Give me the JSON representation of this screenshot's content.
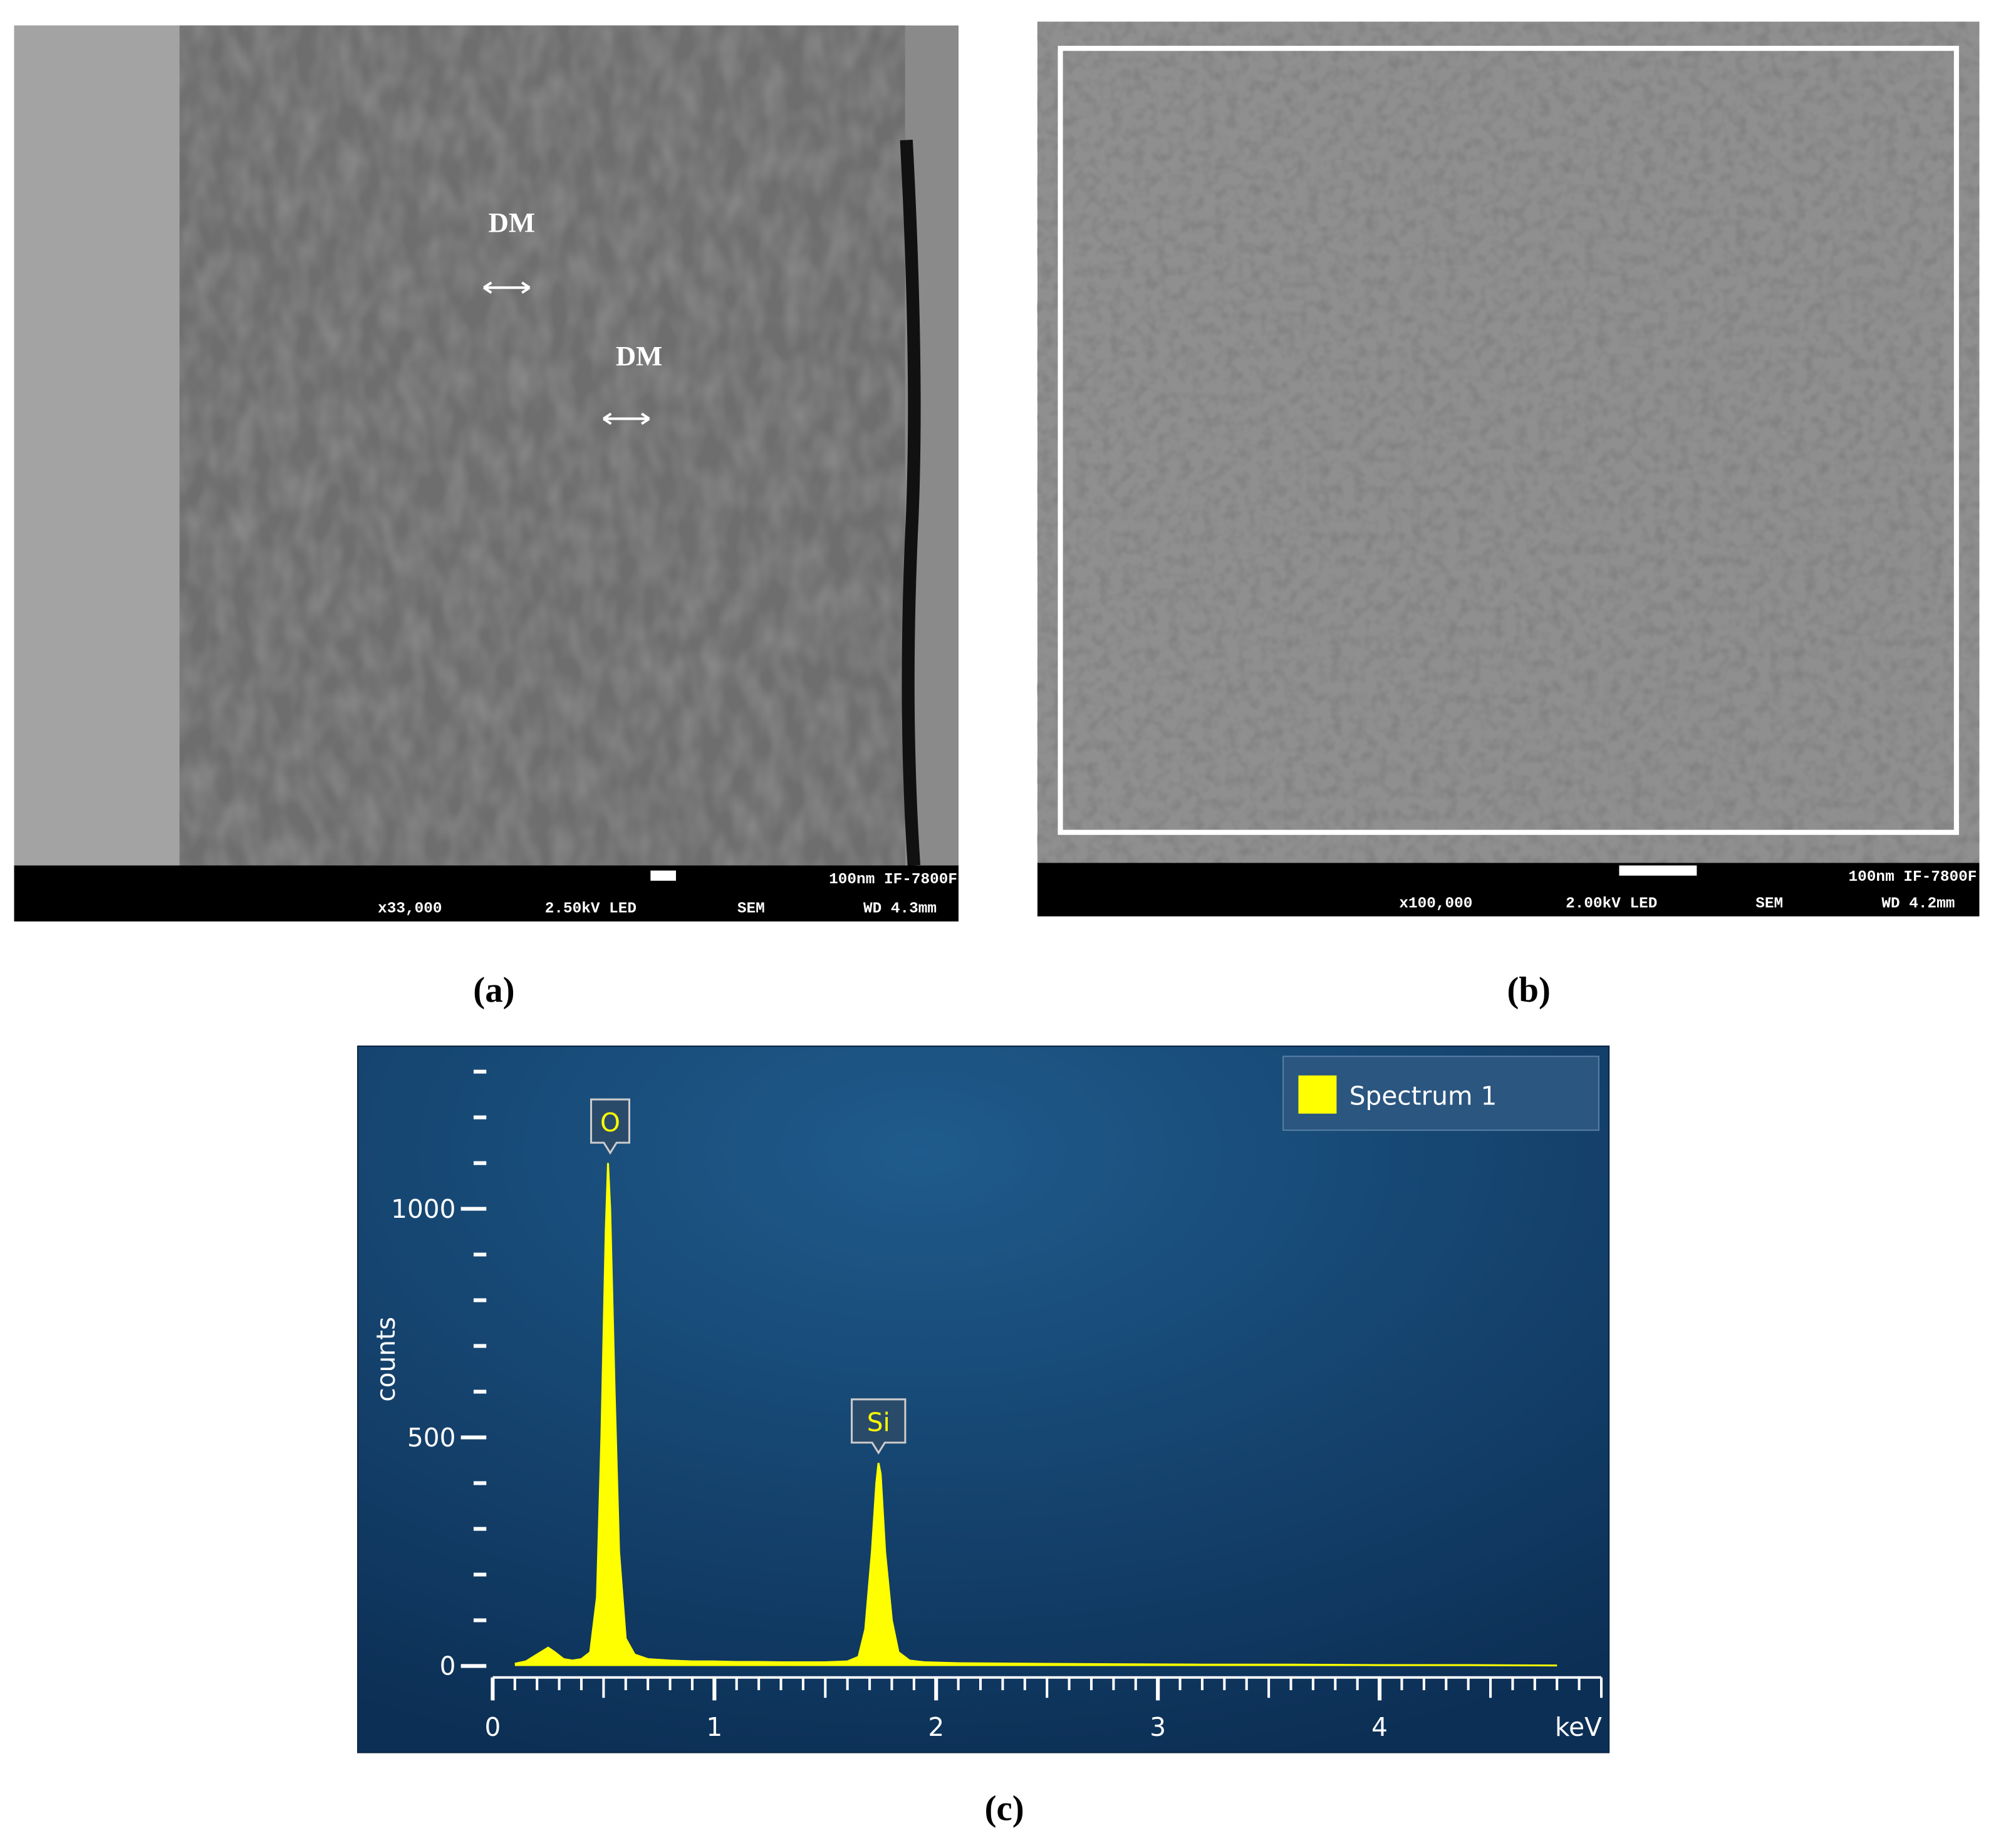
{
  "panels": [
    {
      "label": "(a)",
      "annotations": [
        "DM",
        "DM"
      ],
      "scale_bar": "100nm IF-7800F",
      "magnification": "x33,000",
      "voltage": "2.50kV LED",
      "mode": "SEM",
      "working_distance": "WD 4.3mm"
    },
    {
      "label": "(b)",
      "scale_bar": "100nm IF-7800F",
      "magnification": "x100,000",
      "voltage": "2.00kV LED",
      "mode": "SEM",
      "working_distance": "WD 4.2mm"
    },
    {
      "label": "(c)"
    }
  ],
  "chart_data": {
    "type": "area",
    "y_label": "counts",
    "x_unit": "keV",
    "xlim": [
      0,
      5
    ],
    "xticks": [
      0,
      1,
      2,
      3,
      4
    ],
    "x_minor_step": 0.1,
    "ylim": [
      0,
      1300
    ],
    "yticks": [
      0,
      500,
      1000
    ],
    "y_minor_ticks": [
      100,
      200,
      300,
      400,
      600,
      700,
      800,
      900,
      1100,
      1200,
      1300
    ],
    "legend": "top-right",
    "series": [
      {
        "name": "Spectrum 1",
        "color": "#ffff00",
        "x": [
          0.1,
          0.15,
          0.2,
          0.25,
          0.28,
          0.32,
          0.36,
          0.4,
          0.44,
          0.47,
          0.49,
          0.51,
          0.52,
          0.53,
          0.55,
          0.57,
          0.6,
          0.64,
          0.7,
          0.8,
          0.9,
          1.0,
          1.1,
          1.2,
          1.3,
          1.4,
          1.5,
          1.6,
          1.65,
          1.68,
          1.71,
          1.73,
          1.74,
          1.75,
          1.77,
          1.8,
          1.83,
          1.88,
          1.95,
          2.1,
          2.4,
          2.8,
          3.2,
          3.6,
          4.0,
          4.4,
          4.8
        ],
        "values": [
          5,
          10,
          25,
          40,
          30,
          15,
          12,
          15,
          30,
          150,
          500,
          950,
          1100,
          1000,
          600,
          250,
          60,
          25,
          15,
          12,
          10,
          10,
          9,
          9,
          8,
          8,
          8,
          10,
          20,
          80,
          250,
          400,
          444,
          420,
          250,
          100,
          30,
          12,
          8,
          6,
          5,
          4,
          3,
          3,
          2,
          2,
          1
        ]
      }
    ],
    "annotations": [
      {
        "text": "O",
        "x": 0.53,
        "y": 1100
      },
      {
        "text": "Si",
        "x": 1.74,
        "y": 444
      }
    ]
  }
}
